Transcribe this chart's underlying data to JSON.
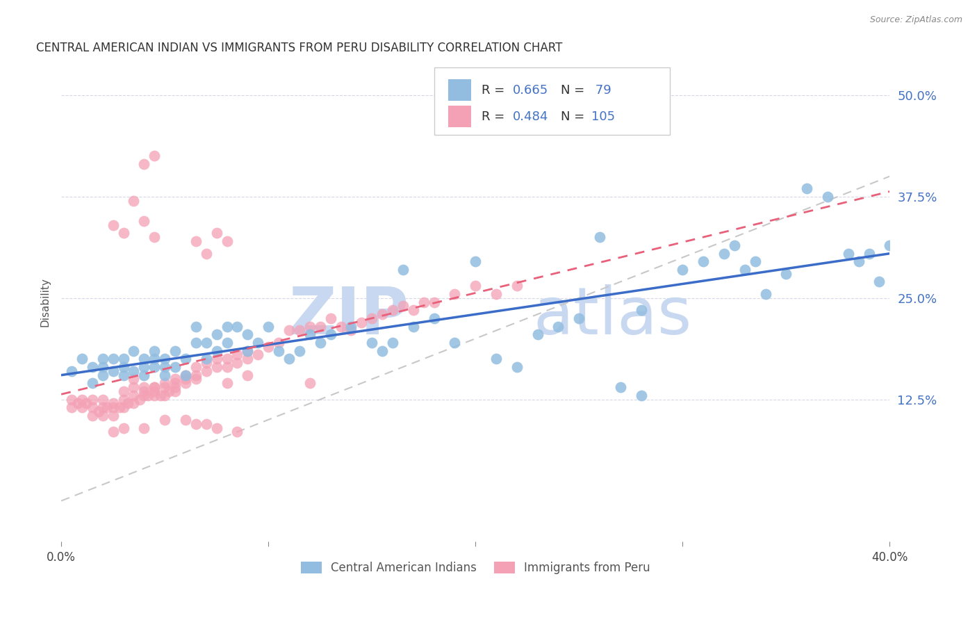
{
  "title": "CENTRAL AMERICAN INDIAN VS IMMIGRANTS FROM PERU DISABILITY CORRELATION CHART",
  "source": "Source: ZipAtlas.com",
  "ylabel": "Disability",
  "ytick_labels": [
    "12.5%",
    "25.0%",
    "37.5%",
    "50.0%"
  ],
  "ytick_values": [
    0.125,
    0.25,
    0.375,
    0.5
  ],
  "xlim": [
    0.0,
    0.4
  ],
  "ylim": [
    -0.05,
    0.54
  ],
  "legend_r1": "R = 0.665",
  "legend_n1": "N =  79",
  "legend_r2": "R = 0.484",
  "legend_n2": "N = 105",
  "blue_color": "#92BDE0",
  "pink_color": "#F4A0B5",
  "blue_line_color": "#3A6CC8",
  "pink_line_color": "#E8607A",
  "diag_line_color": "#C8C8C8",
  "watermark_color": "#C8D8F0",
  "text_color": "#4472C4",
  "blue_scatter_x": [
    0.005,
    0.01,
    0.015,
    0.015,
    0.02,
    0.02,
    0.02,
    0.025,
    0.025,
    0.03,
    0.03,
    0.03,
    0.035,
    0.035,
    0.04,
    0.04,
    0.04,
    0.045,
    0.045,
    0.045,
    0.05,
    0.05,
    0.05,
    0.055,
    0.055,
    0.06,
    0.06,
    0.065,
    0.065,
    0.07,
    0.07,
    0.075,
    0.075,
    0.08,
    0.08,
    0.085,
    0.09,
    0.09,
    0.095,
    0.1,
    0.105,
    0.11,
    0.115,
    0.12,
    0.125,
    0.13,
    0.14,
    0.15,
    0.155,
    0.16,
    0.17,
    0.18,
    0.19,
    0.2,
    0.21,
    0.22,
    0.23,
    0.24,
    0.25,
    0.26,
    0.28,
    0.3,
    0.31,
    0.32,
    0.325,
    0.33,
    0.335,
    0.34,
    0.35,
    0.36,
    0.37,
    0.38,
    0.385,
    0.39,
    0.395,
    0.4,
    0.27,
    0.28,
    0.165
  ],
  "blue_scatter_y": [
    0.16,
    0.175,
    0.145,
    0.165,
    0.155,
    0.165,
    0.175,
    0.16,
    0.175,
    0.155,
    0.165,
    0.175,
    0.16,
    0.185,
    0.155,
    0.165,
    0.175,
    0.165,
    0.175,
    0.185,
    0.155,
    0.165,
    0.175,
    0.165,
    0.185,
    0.155,
    0.175,
    0.195,
    0.215,
    0.175,
    0.195,
    0.185,
    0.205,
    0.215,
    0.195,
    0.215,
    0.185,
    0.205,
    0.195,
    0.215,
    0.185,
    0.175,
    0.185,
    0.205,
    0.195,
    0.205,
    0.215,
    0.195,
    0.185,
    0.195,
    0.215,
    0.225,
    0.195,
    0.295,
    0.175,
    0.165,
    0.205,
    0.215,
    0.225,
    0.325,
    0.235,
    0.285,
    0.295,
    0.305,
    0.315,
    0.285,
    0.295,
    0.255,
    0.28,
    0.385,
    0.375,
    0.305,
    0.295,
    0.305,
    0.27,
    0.315,
    0.14,
    0.13,
    0.285
  ],
  "pink_scatter_x": [
    0.005,
    0.005,
    0.008,
    0.01,
    0.01,
    0.012,
    0.015,
    0.015,
    0.015,
    0.018,
    0.02,
    0.02,
    0.02,
    0.022,
    0.025,
    0.025,
    0.025,
    0.028,
    0.03,
    0.03,
    0.03,
    0.032,
    0.035,
    0.035,
    0.035,
    0.038,
    0.04,
    0.04,
    0.04,
    0.042,
    0.045,
    0.045,
    0.045,
    0.048,
    0.05,
    0.05,
    0.05,
    0.052,
    0.055,
    0.055,
    0.055,
    0.06,
    0.06,
    0.065,
    0.065,
    0.065,
    0.07,
    0.07,
    0.075,
    0.075,
    0.08,
    0.08,
    0.085,
    0.085,
    0.09,
    0.09,
    0.095,
    0.1,
    0.105,
    0.11,
    0.115,
    0.12,
    0.125,
    0.13,
    0.135,
    0.14,
    0.145,
    0.15,
    0.155,
    0.16,
    0.165,
    0.17,
    0.175,
    0.18,
    0.19,
    0.2,
    0.21,
    0.22,
    0.035,
    0.04,
    0.045,
    0.025,
    0.03,
    0.04,
    0.05,
    0.06,
    0.07,
    0.075,
    0.085,
    0.025,
    0.03,
    0.04,
    0.045,
    0.065,
    0.07,
    0.075,
    0.08,
    0.035,
    0.045,
    0.055,
    0.06,
    0.08,
    0.09,
    0.12,
    0.065
  ],
  "pink_scatter_y": [
    0.115,
    0.125,
    0.12,
    0.115,
    0.125,
    0.12,
    0.105,
    0.115,
    0.125,
    0.11,
    0.105,
    0.115,
    0.125,
    0.115,
    0.105,
    0.115,
    0.12,
    0.115,
    0.115,
    0.125,
    0.135,
    0.12,
    0.12,
    0.13,
    0.14,
    0.125,
    0.13,
    0.135,
    0.14,
    0.13,
    0.13,
    0.135,
    0.14,
    0.13,
    0.13,
    0.14,
    0.145,
    0.135,
    0.14,
    0.145,
    0.15,
    0.145,
    0.155,
    0.15,
    0.155,
    0.165,
    0.16,
    0.17,
    0.165,
    0.175,
    0.165,
    0.175,
    0.17,
    0.18,
    0.175,
    0.185,
    0.18,
    0.19,
    0.195,
    0.21,
    0.21,
    0.215,
    0.215,
    0.225,
    0.215,
    0.21,
    0.22,
    0.225,
    0.23,
    0.235,
    0.24,
    0.235,
    0.245,
    0.245,
    0.255,
    0.265,
    0.255,
    0.265,
    0.37,
    0.415,
    0.425,
    0.085,
    0.09,
    0.09,
    0.1,
    0.1,
    0.095,
    0.09,
    0.085,
    0.34,
    0.33,
    0.345,
    0.325,
    0.32,
    0.305,
    0.33,
    0.32,
    0.15,
    0.14,
    0.135,
    0.15,
    0.145,
    0.155,
    0.145,
    0.095
  ]
}
